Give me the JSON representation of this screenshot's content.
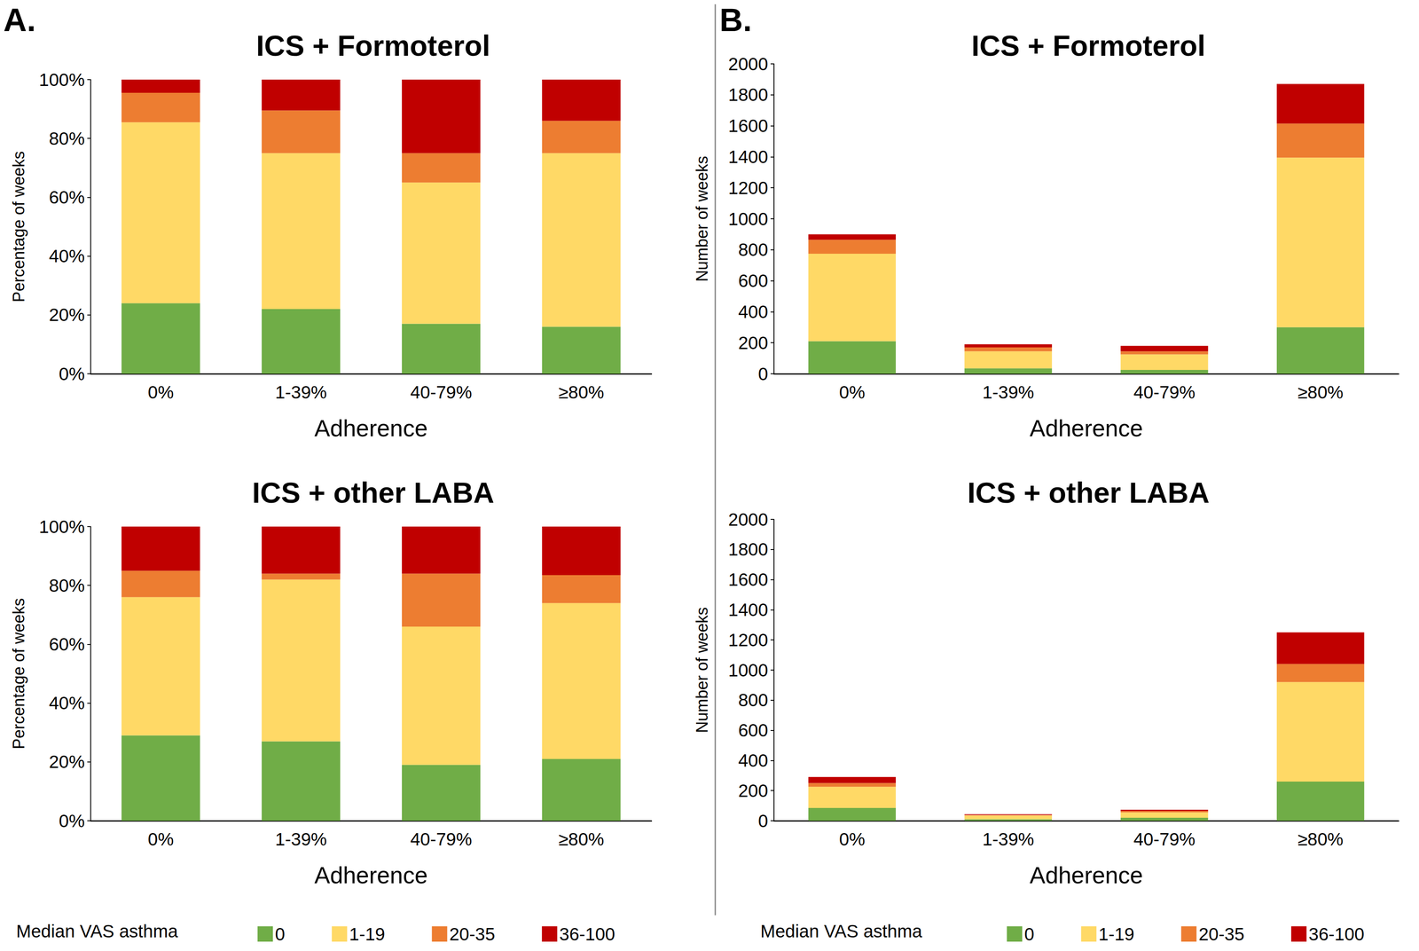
{
  "chart_data": [
    {
      "type": "bar",
      "stacked": true,
      "grid": false,
      "annotations": [
        "A."
      ],
      "title": "ICS + Formoterol",
      "x_label": "Adherence",
      "y_label": "Percentage of weeks",
      "categories": [
        "0%",
        "1-39%",
        "40-79%",
        "≥80%"
      ],
      "ylim": [
        0,
        100
      ],
      "yticks": [
        {
          "value": 0,
          "label": "0%"
        },
        {
          "value": 20,
          "label": "20%"
        },
        {
          "value": 40,
          "label": "40%"
        },
        {
          "value": 60,
          "label": "60%"
        },
        {
          "value": 80,
          "label": "80%"
        },
        {
          "value": 100,
          "label": "100%"
        }
      ],
      "series": [
        {
          "name": "0",
          "color": "#70ad47",
          "values": [
            24,
            22,
            17,
            16
          ]
        },
        {
          "name": "1-19",
          "color": "#ffd966",
          "values": [
            61.5,
            53,
            48,
            59
          ]
        },
        {
          "name": "20-35",
          "color": "#ed7d31",
          "values": [
            10,
            14.5,
            10,
            11
          ]
        },
        {
          "name": "36-100",
          "color": "#c00000",
          "values": [
            4.5,
            10.5,
            25,
            14
          ]
        }
      ]
    },
    {
      "type": "bar",
      "stacked": true,
      "grid": false,
      "title": "ICS + other LABA",
      "x_label": "Adherence",
      "y_label": "Percentage of weeks",
      "legend": "bottom",
      "legend_title": "Median VAS asthma",
      "categories": [
        "0%",
        "1-39%",
        "40-79%",
        "≥80%"
      ],
      "ylim": [
        0,
        100
      ],
      "yticks": [
        {
          "value": 0,
          "label": "0%"
        },
        {
          "value": 20,
          "label": "20%"
        },
        {
          "value": 40,
          "label": "40%"
        },
        {
          "value": 60,
          "label": "60%"
        },
        {
          "value": 80,
          "label": "80%"
        },
        {
          "value": 100,
          "label": "100%"
        }
      ],
      "series": [
        {
          "name": "0",
          "color": "#70ad47",
          "values": [
            29,
            27,
            19,
            21
          ]
        },
        {
          "name": "1-19",
          "color": "#ffd966",
          "values": [
            47,
            55,
            47,
            53
          ]
        },
        {
          "name": "20-35",
          "color": "#ed7d31",
          "values": [
            9,
            2,
            18,
            9.5
          ]
        },
        {
          "name": "36-100",
          "color": "#c00000",
          "values": [
            15,
            16,
            16,
            16.5
          ]
        }
      ]
    },
    {
      "type": "bar",
      "stacked": true,
      "grid": false,
      "annotations": [
        "B."
      ],
      "title": "ICS + Formoterol",
      "x_label": "Adherence",
      "y_label": "Number of weeks",
      "categories": [
        "0%",
        "1-39%",
        "40-79%",
        "≥80%"
      ],
      "ylim": [
        0,
        2000
      ],
      "yticks": [
        0,
        200,
        400,
        600,
        800,
        1000,
        1200,
        1400,
        1600,
        1800,
        2000
      ],
      "series": [
        {
          "name": "0",
          "color": "#70ad47",
          "values": [
            210,
            35,
            25,
            300
          ]
        },
        {
          "name": "1-19",
          "color": "#ffd966",
          "values": [
            565,
            110,
            100,
            1095
          ]
        },
        {
          "name": "20-35",
          "color": "#ed7d31",
          "values": [
            90,
            25,
            20,
            220
          ]
        },
        {
          "name": "36-100",
          "color": "#c00000",
          "values": [
            35,
            20,
            35,
            255
          ]
        }
      ]
    },
    {
      "type": "bar",
      "stacked": true,
      "grid": false,
      "title": "ICS + other LABA",
      "x_label": "Adherence",
      "y_label": "Number of weeks",
      "legend": "bottom",
      "legend_title": "Median VAS asthma",
      "categories": [
        "0%",
        "1-39%",
        "40-79%",
        "≥80%"
      ],
      "ylim": [
        0,
        2000
      ],
      "yticks": [
        0,
        200,
        400,
        600,
        800,
        1000,
        1200,
        1400,
        1600,
        1800,
        2000
      ],
      "series": [
        {
          "name": "0",
          "color": "#70ad47",
          "values": [
            85,
            10,
            20,
            260
          ]
        },
        {
          "name": "1-19",
          "color": "#ffd966",
          "values": [
            140,
            25,
            35,
            660
          ]
        },
        {
          "name": "20-35",
          "color": "#ed7d31",
          "values": [
            25,
            3,
            10,
            120
          ]
        },
        {
          "name": "36-100",
          "color": "#c00000",
          "values": [
            40,
            5,
            8,
            210
          ]
        }
      ]
    }
  ]
}
